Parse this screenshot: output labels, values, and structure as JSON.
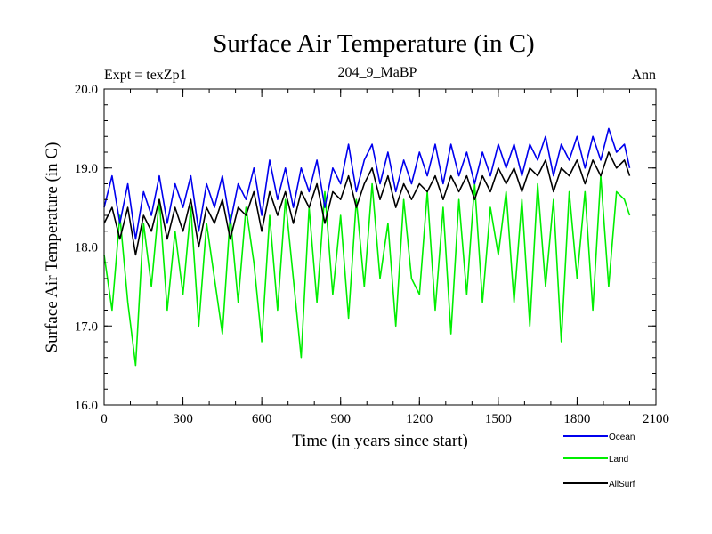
{
  "chart_data": {
    "type": "line",
    "title": "Surface Air Temperature (in C)",
    "subtitle_left": "Expt = texZp1",
    "subtitle_center": "204_9_MaBP",
    "subtitle_right": "Ann",
    "xlabel": "Time (in years since start)",
    "ylabel": "Surface Air Temperature (in C)",
    "xlim": [
      0,
      2100
    ],
    "ylim": [
      16.0,
      20.0
    ],
    "x_ticks": [
      0,
      300,
      600,
      900,
      1200,
      1500,
      1800,
      2100
    ],
    "x_tick_labels": [
      "0",
      "300",
      "600",
      "900",
      "1200",
      "1500",
      "1800",
      "2100"
    ],
    "y_ticks": [
      16.0,
      17.0,
      18.0,
      19.0,
      20.0
    ],
    "y_tick_labels": [
      "16.0",
      "17.0",
      "18.0",
      "19.0",
      "20.0"
    ],
    "x_minor_step": 100,
    "y_minor_step": 0.2,
    "series": [
      {
        "name": "Land",
        "color": "#00ee00",
        "x": [
          0,
          30,
          60,
          90,
          120,
          150,
          180,
          210,
          240,
          270,
          300,
          330,
          360,
          390,
          420,
          450,
          480,
          510,
          540,
          570,
          600,
          630,
          660,
          690,
          720,
          750,
          780,
          810,
          840,
          870,
          900,
          930,
          960,
          990,
          1020,
          1050,
          1080,
          1110,
          1140,
          1170,
          1200,
          1230,
          1260,
          1290,
          1320,
          1350,
          1380,
          1410,
          1440,
          1470,
          1500,
          1530,
          1560,
          1590,
          1620,
          1650,
          1680,
          1710,
          1740,
          1770,
          1800,
          1830,
          1860,
          1890,
          1920,
          1950,
          1980,
          2000
        ],
        "values": [
          17.9,
          17.2,
          18.4,
          17.3,
          16.5,
          18.3,
          17.5,
          18.6,
          17.2,
          18.2,
          17.4,
          18.5,
          17.0,
          18.3,
          17.6,
          16.9,
          18.4,
          17.3,
          18.5,
          17.8,
          16.8,
          18.4,
          17.2,
          18.6,
          17.6,
          16.6,
          18.5,
          17.3,
          18.7,
          17.4,
          18.4,
          17.1,
          18.6,
          17.5,
          18.8,
          17.6,
          18.3,
          17.0,
          18.6,
          17.6,
          17.4,
          18.7,
          17.2,
          18.5,
          16.9,
          18.6,
          17.4,
          18.8,
          17.3,
          18.5,
          17.9,
          18.7,
          17.3,
          18.6,
          17.0,
          18.8,
          17.5,
          18.6,
          16.8,
          18.7,
          17.6,
          18.7,
          17.2,
          18.9,
          17.5,
          18.7,
          18.6,
          18.4
        ]
      },
      {
        "name": "Ocean",
        "color": "#0000ee",
        "x": [
          0,
          30,
          60,
          90,
          120,
          150,
          180,
          210,
          240,
          270,
          300,
          330,
          360,
          390,
          420,
          450,
          480,
          510,
          540,
          570,
          600,
          630,
          660,
          690,
          720,
          750,
          780,
          810,
          840,
          870,
          900,
          930,
          960,
          990,
          1020,
          1050,
          1080,
          1110,
          1140,
          1170,
          1200,
          1230,
          1260,
          1290,
          1320,
          1350,
          1380,
          1410,
          1440,
          1470,
          1500,
          1530,
          1560,
          1590,
          1620,
          1650,
          1680,
          1710,
          1740,
          1770,
          1800,
          1830,
          1860,
          1890,
          1920,
          1950,
          1980,
          2000
        ],
        "values": [
          18.5,
          18.9,
          18.3,
          18.8,
          18.1,
          18.7,
          18.4,
          18.9,
          18.3,
          18.8,
          18.5,
          18.9,
          18.2,
          18.8,
          18.5,
          18.9,
          18.3,
          18.8,
          18.6,
          19.0,
          18.4,
          19.1,
          18.6,
          19.0,
          18.5,
          19.0,
          18.7,
          19.1,
          18.5,
          19.0,
          18.8,
          19.3,
          18.7,
          19.1,
          19.3,
          18.8,
          19.2,
          18.7,
          19.1,
          18.8,
          19.2,
          18.9,
          19.3,
          18.8,
          19.3,
          18.9,
          19.2,
          18.8,
          19.2,
          18.9,
          19.3,
          19.0,
          19.3,
          18.9,
          19.3,
          19.1,
          19.4,
          18.9,
          19.3,
          19.1,
          19.4,
          19.0,
          19.4,
          19.1,
          19.5,
          19.2,
          19.3,
          19.0
        ]
      },
      {
        "name": "AllSurf",
        "color": "#000000",
        "x": [
          0,
          30,
          60,
          90,
          120,
          150,
          180,
          210,
          240,
          270,
          300,
          330,
          360,
          390,
          420,
          450,
          480,
          510,
          540,
          570,
          600,
          630,
          660,
          690,
          720,
          750,
          780,
          810,
          840,
          870,
          900,
          930,
          960,
          990,
          1020,
          1050,
          1080,
          1110,
          1140,
          1170,
          1200,
          1230,
          1260,
          1290,
          1320,
          1350,
          1380,
          1410,
          1440,
          1470,
          1500,
          1530,
          1560,
          1590,
          1620,
          1650,
          1680,
          1710,
          1740,
          1770,
          1800,
          1830,
          1860,
          1890,
          1920,
          1950,
          1980,
          2000
        ],
        "values": [
          18.3,
          18.5,
          18.1,
          18.5,
          17.9,
          18.4,
          18.2,
          18.6,
          18.1,
          18.5,
          18.2,
          18.6,
          18.0,
          18.5,
          18.3,
          18.6,
          18.1,
          18.5,
          18.4,
          18.7,
          18.2,
          18.7,
          18.4,
          18.7,
          18.3,
          18.7,
          18.5,
          18.8,
          18.3,
          18.7,
          18.6,
          18.9,
          18.5,
          18.8,
          19.0,
          18.6,
          18.9,
          18.5,
          18.8,
          18.6,
          18.8,
          18.7,
          18.9,
          18.6,
          18.9,
          18.7,
          18.9,
          18.6,
          18.9,
          18.7,
          19.0,
          18.8,
          19.0,
          18.7,
          19.0,
          18.9,
          19.1,
          18.7,
          19.0,
          18.9,
          19.1,
          18.8,
          19.1,
          18.9,
          19.2,
          19.0,
          19.1,
          18.9
        ]
      }
    ],
    "legend": {
      "placement": "bottom-right",
      "entries": [
        "Ocean",
        "Land",
        "AllSurf"
      ]
    }
  }
}
